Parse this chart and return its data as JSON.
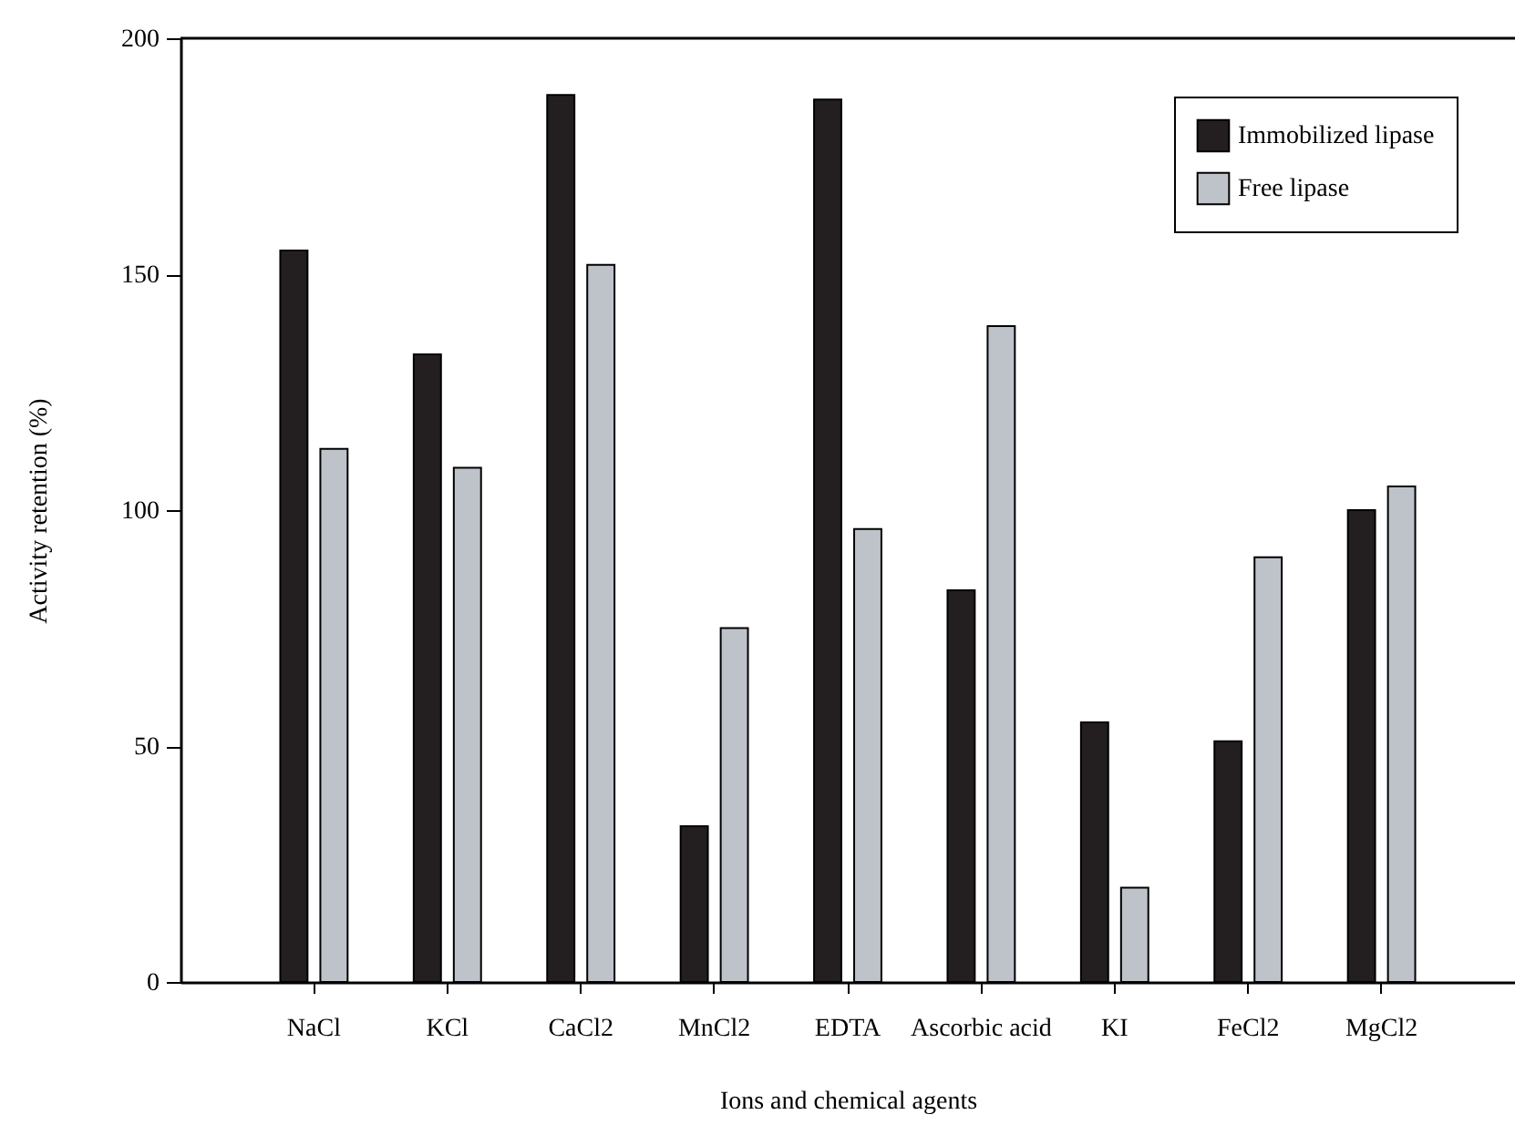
{
  "chart_data": {
    "type": "bar",
    "xlabel": "Ions and chemical agents",
    "ylabel": "Activity retention (%)",
    "categories": [
      "NaCl",
      "KCl",
      "CaCl2",
      "MnCl2",
      "EDTA",
      "Ascorbic acid",
      "KI",
      "FeCl2",
      "MgCl2"
    ],
    "series": [
      {
        "name": "Immobilized lipase",
        "color": "#231f20",
        "values": [
          155,
          133,
          188,
          33,
          187,
          83,
          55,
          51,
          100
        ]
      },
      {
        "name": "Free lipase",
        "color": "#bec3ca",
        "values": [
          113,
          109,
          152,
          75,
          96,
          139,
          20,
          90,
          105
        ]
      }
    ],
    "ylim": [
      0,
      200
    ],
    "yticks": [
      0,
      50,
      100,
      150,
      200
    ],
    "grid": false,
    "legend": "top right"
  }
}
